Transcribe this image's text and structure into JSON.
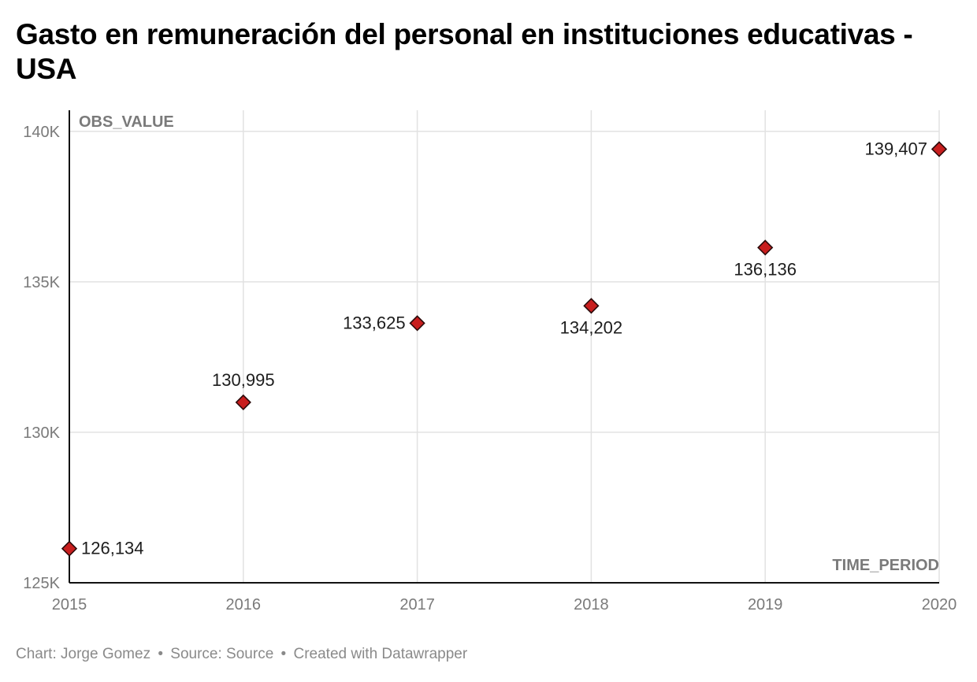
{
  "chart_data": {
    "type": "scatter",
    "title": "Gasto en remuneración del personal en instituciones educativas - USA",
    "xlabel": "TIME_PERIOD",
    "ylabel": "OBS_VALUE",
    "x": [
      2015,
      2016,
      2017,
      2018,
      2019,
      2020
    ],
    "xticks": [
      "2015",
      "2016",
      "2017",
      "2018",
      "2019",
      "2020"
    ],
    "yticks": [
      "125K",
      "130K",
      "135K",
      "140K"
    ],
    "ytick_values": [
      125000,
      130000,
      135000,
      140000
    ],
    "ylim": [
      125000,
      140700
    ],
    "xlim": [
      2015,
      2020
    ],
    "grid": true,
    "marker": "diamond",
    "series": [
      {
        "values": [
          126134,
          130995,
          133625,
          134202,
          136136,
          139407
        ],
        "data_labels": [
          "126,134",
          "130,995",
          "133,625",
          "134,202",
          "136,136",
          "139,407"
        ],
        "label_positions": [
          "right",
          "above",
          "left",
          "below",
          "below",
          "left"
        ]
      }
    ]
  },
  "footer": {
    "chart_credit": "Chart: Jorge Gomez",
    "source": "Source: Source",
    "created": "Created with Datawrapper",
    "separator": "•"
  },
  "colors": {
    "marker_fill": "#c81e1e",
    "marker_stroke": "#2a0a0a",
    "grid": "#e2e2e2",
    "axis": "#111111",
    "tick_text": "#7a7a7a",
    "axis_title": "#7a7a7a",
    "label_text": "#1d1d1d"
  }
}
